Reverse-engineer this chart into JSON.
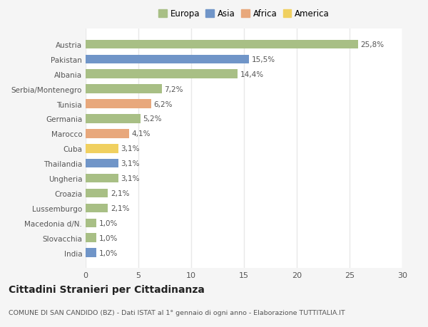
{
  "categories": [
    "Austria",
    "Pakistan",
    "Albania",
    "Serbia/Montenegro",
    "Tunisia",
    "Germania",
    "Marocco",
    "Cuba",
    "Thailandia",
    "Ungheria",
    "Croazia",
    "Lussemburgo",
    "Macedonia d/N.",
    "Slovacchia",
    "India"
  ],
  "values": [
    25.8,
    15.5,
    14.4,
    7.2,
    6.2,
    5.2,
    4.1,
    3.1,
    3.1,
    3.1,
    2.1,
    2.1,
    1.0,
    1.0,
    1.0
  ],
  "labels": [
    "25,8%",
    "15,5%",
    "14,4%",
    "7,2%",
    "6,2%",
    "5,2%",
    "4,1%",
    "3,1%",
    "3,1%",
    "3,1%",
    "2,1%",
    "2,1%",
    "1,0%",
    "1,0%",
    "1,0%"
  ],
  "continents": [
    "Europa",
    "Asia",
    "Europa",
    "Europa",
    "Africa",
    "Europa",
    "Africa",
    "America",
    "Asia",
    "Europa",
    "Europa",
    "Europa",
    "Europa",
    "Europa",
    "Asia"
  ],
  "colors": {
    "Europa": "#a8bf85",
    "Asia": "#7095c8",
    "Africa": "#e8a87c",
    "America": "#f0d060"
  },
  "legend_order": [
    "Europa",
    "Asia",
    "Africa",
    "America"
  ],
  "xlim": [
    0,
    30
  ],
  "xticks": [
    0,
    5,
    10,
    15,
    20,
    25,
    30
  ],
  "title": "Cittadini Stranieri per Cittadinanza",
  "subtitle": "COMUNE DI SAN CANDIDO (BZ) - Dati ISTAT al 1° gennaio di ogni anno - Elaborazione TUTTITALIA.IT",
  "bg_color": "#f5f5f5",
  "plot_bg_color": "#ffffff",
  "grid_color": "#e8e8e8",
  "bar_height": 0.6,
  "label_fontsize": 7.5,
  "ytick_fontsize": 7.5,
  "xtick_fontsize": 8,
  "title_fontsize": 10,
  "subtitle_fontsize": 6.8,
  "legend_fontsize": 8.5,
  "label_color": "#555555",
  "title_color": "#222222",
  "subtitle_color": "#555555"
}
